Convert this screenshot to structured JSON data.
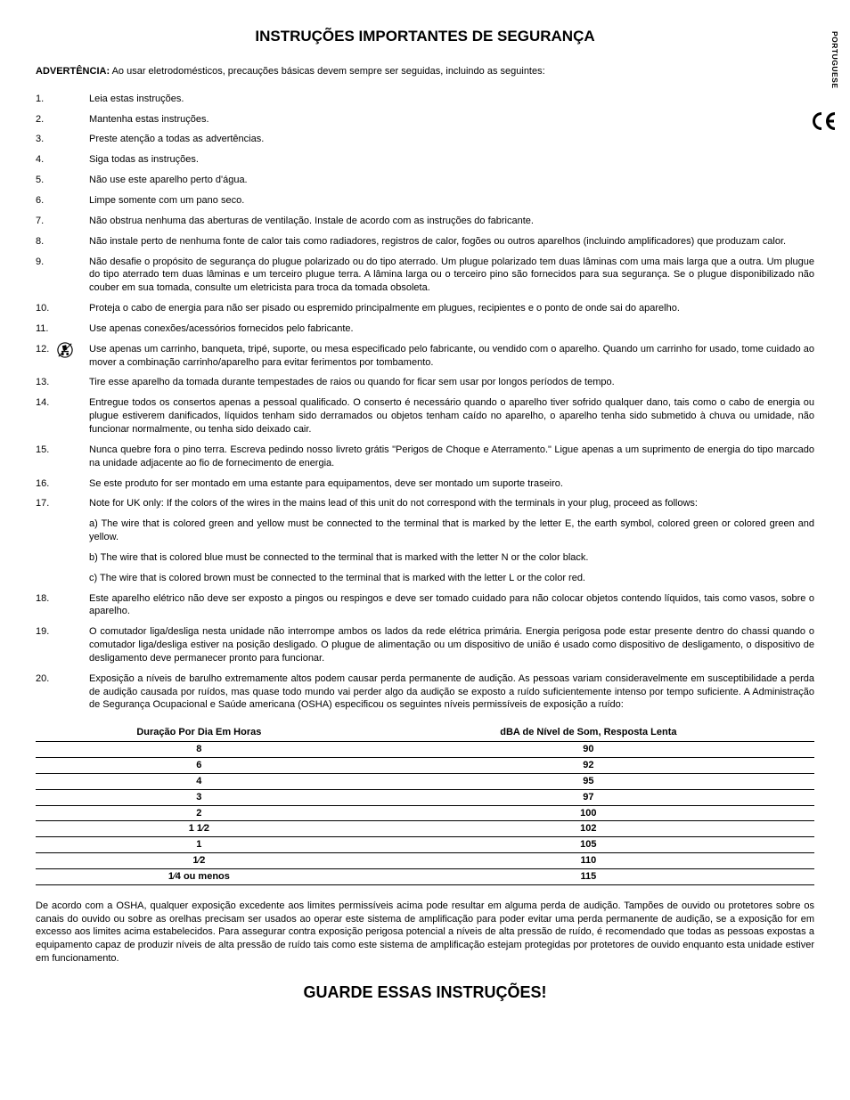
{
  "side_label": "PORTUGUESE",
  "ce_mark": "CЄ",
  "title": "INSTRUÇÕES IMPORTANTES DE SEGURANÇA",
  "warning_label": "ADVERTÊNCIA:",
  "warning_text": " Ao usar eletrodomésticos, precauções básicas devem sempre ser seguidas, incluindo as seguintes:",
  "items": [
    "Leia estas instruções.",
    "Mantenha estas instruções.",
    "Preste atenção a todas as advertências.",
    "Siga todas as instruções.",
    "Não use este aparelho perto d'água.",
    "Limpe somente com um pano seco.",
    "Não obstrua nenhuma das aberturas de ventilação. Instale de acordo com as instruções do fabricante.",
    "Não instale perto de nenhuma fonte de calor tais como radiadores, registros de calor, fogões ou outros aparelhos (incluindo amplificadores) que produzam calor.",
    "Não desafie o propósito de segurança do plugue polarizado ou do tipo aterrado. Um plugue polarizado tem duas lâminas com uma mais larga que a outra. Um plugue do tipo aterrado tem duas lâminas e um terceiro plugue terra. A lâmina larga ou o terceiro pino são fornecidos para sua segurança. Se o plugue disponibilizado não couber em sua tomada, consulte um eletricista para troca da tomada obsoleta.",
    "Proteja o cabo de energia para não ser pisado ou espremido principalmente em plugues, recipientes e o ponto de onde sai do aparelho.",
    "Use apenas conexões/acessórios fornecidos pelo fabricante.",
    "Use apenas um carrinho, banqueta, tripé, suporte, ou mesa especificado pelo fabricante, ou vendido com o aparelho. Quando um carrinho for usado, tome cuidado ao mover a combinação carrinho/aparelho para evitar ferimentos por tombamento.",
    "Tire esse aparelho da tomada durante tempestades de raios ou quando for ficar sem usar por longos períodos de tempo.",
    "Entregue todos os consertos apenas a pessoal qualificado. O conserto é necessário quando o aparelho tiver sofrido qualquer dano, tais como o cabo de energia ou plugue estiverem danificados, líquidos tenham sido derramados ou objetos tenham caído no aparelho, o aparelho tenha sido submetido à chuva ou umidade, não funcionar normalmente, ou tenha sido deixado cair.",
    "Nunca quebre fora o pino terra. Escreva pedindo nosso livreto grátis \"Perigos de Choque e Aterramento.\" Ligue apenas a um suprimento de energia do tipo marcado na unidade adjacente ao fio de fornecimento de energia.",
    "Se este produto for ser montado em uma estante para equipamentos, deve ser montado um suporte traseiro.",
    "Note for UK only: If the colors of the wires in the mains lead of this unit do not correspond with the terminals in your plug, proceed as follows:",
    "Este aparelho elétrico não deve ser exposto a pingos ou respingos e deve ser tomado cuidado para não colocar objetos contendo líquidos, tais como vasos, sobre o aparelho.",
    "O comutador liga/desliga nesta unidade não interrompe ambos os lados da rede elétrica primária. Energia perigosa pode estar presente dentro do chassi quando o comutador liga/desliga estiver na posição desligado. O plugue de alimentação ou um dispositivo de união é usado como dispositivo de desligamento, o dispositivo de desligamento deve permanecer pronto para funcionar.",
    "Exposição a níveis de barulho extremamente altos podem causar perda permanente de audição. As pessoas variam consideravelmente em susceptibilidade a perda de audição causada por ruídos, mas quase todo mundo vai perder algo da audição se exposto a ruído suficientemente intenso por tempo suficiente. A Administração de Segurança Ocupacional e Saúde americana (OSHA) especificou os seguintes níveis permissíveis de exposição a ruído:"
  ],
  "item17_sub": [
    "a) The wire that is colored green and yellow must be connected to the terminal that is marked by the letter E, the earth symbol, colored green or colored green and yellow.",
    "b) The wire that is colored blue must be connected to the terminal that is marked with the letter N or the color black.",
    "c) The wire that is colored brown must be connected to the terminal that is marked with the letter L or the color red."
  ],
  "table": {
    "headers": [
      "Duração Por Dia Em Horas",
      "dBA de Nível de Som, Resposta Lenta"
    ],
    "rows": [
      [
        "8",
        "90"
      ],
      [
        "6",
        "92"
      ],
      [
        "4",
        "95"
      ],
      [
        "3",
        "97"
      ],
      [
        "2",
        "100"
      ],
      [
        "1 1⁄2",
        "102"
      ],
      [
        "1",
        "105"
      ],
      [
        "1⁄2",
        "110"
      ],
      [
        "1⁄4 ou menos",
        "115"
      ]
    ]
  },
  "after_table": "De acordo com a OSHA, qualquer exposição excedente aos limites permissíveis acima pode resultar em alguma perda de audição. Tampões de ouvido ou protetores sobre os canais do ouvido ou sobre as orelhas precisam ser usados ao operar este sistema de amplificação para poder evitar uma perda permanente de audição, se a exposição for em excesso aos limites acima estabelecidos. Para assegurar contra exposição perigosa potencial a níveis de alta pressão de ruído, é recomendado que todas as pessoas expostas a equipamento capaz de produzir níveis de alta pressão de ruído tais como este sistema de amplificação estejam protegidas por protetores de ouvido enquanto esta unidade estiver em funcionamento.",
  "save_title": "GUARDE ESSAS INSTRUÇÕES!",
  "colors": {
    "text": "#000000",
    "background": "#ffffff",
    "rule": "#000000"
  },
  "fonts": {
    "body_family": "Arial",
    "body_size_pt": 8.2,
    "title_size_pt": 13,
    "save_size_pt": 14
  }
}
